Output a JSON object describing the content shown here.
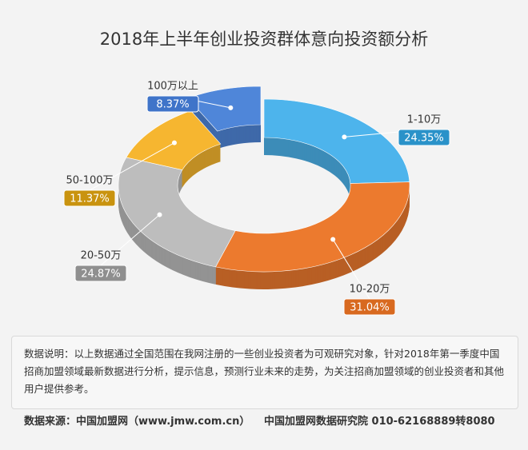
{
  "chart_data": {
    "type": "donut",
    "title": "2018年上半年创业投资群体意向投资额分析",
    "categories": [
      "1-10万",
      "10-20万",
      "20-50万",
      "50-100万",
      "100万以上"
    ],
    "values": [
      24.35,
      31.04,
      24.87,
      11.37,
      8.37
    ],
    "value_labels": [
      "24.35%",
      "31.04%",
      "24.87%",
      "11.37%",
      "8.37%"
    ],
    "colors": [
      "#4db4ec",
      "#ec7a2e",
      "#bdbdbd",
      "#f6b630",
      "#4f86d9"
    ],
    "label_colors": [
      "#2a92c9",
      "#d8691f",
      "#8f8f8f",
      "#c9930f",
      "#3f74c9"
    ],
    "note": "数据说明：以上数据通过全国范围在我网注册的一些创业投资者为可观研究对象，针对2018年第一季度中国招商加盟领域最新数据进行分析，提示信息，预测行业未来的走势，为关注招商加盟领域的创业投资者和其他用户提供参考。",
    "source": "数据来源：中国加盟网（www.jmw.com.cn）",
    "source_org": "中国加盟网数据研究院  010-62168889转8080"
  }
}
